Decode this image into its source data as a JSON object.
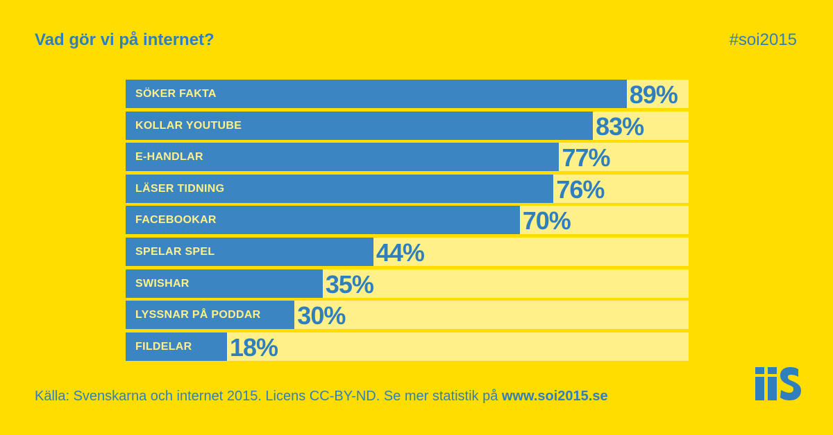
{
  "header": {
    "title": "Vad gör vi på internet?",
    "hashtag": "#soi2015"
  },
  "chart_data": {
    "type": "bar",
    "orientation": "horizontal",
    "title": "Vad gör vi på internet?",
    "unit": "%",
    "xlim": [
      0,
      100
    ],
    "categories": [
      "SÖKER FAKTA",
      "KOLLAR YOUTUBE",
      "E-HANDLAR",
      "LÄSER TIDNING",
      "FACEBOOKAR",
      "SPELAR SPEL",
      "SWISHAR",
      "LYSSNAR PÅ PODDAR",
      "FILDELAR"
    ],
    "values": [
      89,
      83,
      77,
      76,
      70,
      44,
      35,
      30,
      18
    ],
    "value_labels": [
      "89%",
      "83%",
      "77%",
      "76%",
      "70%",
      "44%",
      "35%",
      "30%",
      "18%"
    ],
    "grid": false,
    "legend": "none",
    "colors": {
      "background": "#FFDD00",
      "bar": "#3A85C2",
      "track": "#FFF08A",
      "text": "#2F7FBF"
    }
  },
  "footer": {
    "source_text": "Källa: Svenskarna och internet 2015. Licens CC-BY-ND. Se mer statistik på ",
    "source_link": "www.soi2015.se"
  },
  "logo": {
    "text": "iiS",
    "icon": "iis-logo-icon"
  }
}
